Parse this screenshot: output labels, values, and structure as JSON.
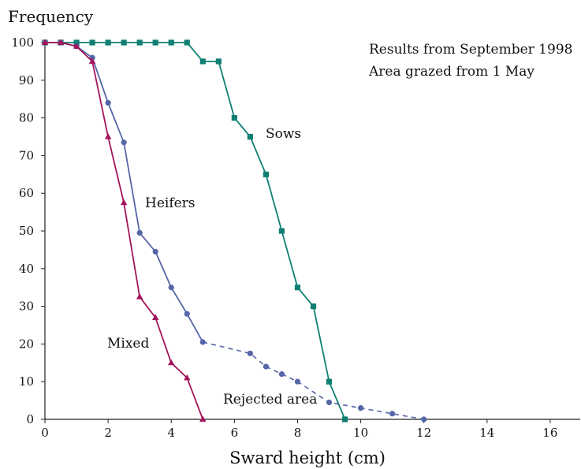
{
  "chart_data": {
    "type": "line",
    "ylabel": "Frequency",
    "xlabel": "Sward height (cm)",
    "xlim": [
      0,
      17
    ],
    "ylim": [
      0,
      100
    ],
    "x_ticks": [
      0,
      2,
      4,
      6,
      8,
      10,
      12,
      14,
      16
    ],
    "y_ticks": [
      0,
      10,
      20,
      30,
      40,
      50,
      60,
      70,
      80,
      90,
      100
    ],
    "grid": false,
    "annotations": [
      {
        "id": "results-line",
        "text": "Results from September 1998"
      },
      {
        "id": "grazed-line",
        "text": "Area grazed from 1 May"
      },
      {
        "id": "rejected-area",
        "text": "Rejected area"
      }
    ],
    "series": [
      {
        "id": "sows",
        "name": "Sows",
        "color": "#0f7f73",
        "marker": "square",
        "x": [
          0,
          0.5,
          1,
          1.5,
          2,
          2.5,
          3,
          3.5,
          4,
          4.5,
          5,
          5.5,
          6,
          6.5,
          7,
          7.5,
          8,
          8.5,
          9,
          9.5
        ],
        "y": [
          100,
          100,
          100,
          100,
          100,
          100,
          100,
          100,
          100,
          100,
          95,
          95,
          80,
          75,
          65,
          50,
          35,
          30,
          10,
          0
        ]
      },
      {
        "id": "heifers",
        "name": "Heifers",
        "color": "#5566a8",
        "marker": "circle",
        "x": [
          0,
          0.5,
          1,
          1.5,
          2,
          2.5,
          3,
          3.5,
          4,
          4.5,
          5
        ],
        "y": [
          100,
          100,
          99,
          96,
          84,
          73.5,
          49.5,
          44.5,
          35,
          28,
          20.5
        ],
        "rejected": {
          "x": [
            5,
            6.5,
            7,
            7.5,
            8,
            9,
            10,
            11,
            12
          ],
          "y": [
            20.5,
            17.5,
            14,
            12,
            10,
            4.5,
            3,
            1.5,
            0
          ]
        }
      },
      {
        "id": "mixed",
        "name": "Mixed",
        "color": "#a3155a",
        "marker": "triangle",
        "x": [
          0,
          0.5,
          1,
          1.5,
          2,
          2.5,
          3,
          3.5,
          4,
          4.5,
          5
        ],
        "y": [
          100,
          100,
          99,
          95,
          75,
          57.5,
          32.5,
          27,
          15,
          11,
          0
        ]
      }
    ]
  }
}
